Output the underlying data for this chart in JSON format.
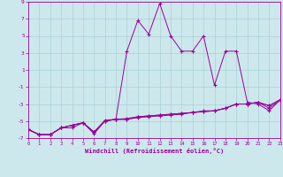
{
  "xlabel": "Windchill (Refroidissement éolien,°C)",
  "background_color": "#cde8ec",
  "line_color": "#990099",
  "grid_color": "#a8d0d4",
  "xmin": 0,
  "xmax": 23,
  "ymin": -7,
  "ymax": 9,
  "yticks": [
    -7,
    -5,
    -3,
    -1,
    1,
    3,
    5,
    7,
    9
  ],
  "xticks": [
    0,
    1,
    2,
    3,
    4,
    5,
    6,
    7,
    8,
    9,
    10,
    11,
    12,
    13,
    14,
    15,
    16,
    17,
    18,
    19,
    20,
    21,
    22,
    23
  ],
  "y_main": [
    -6.0,
    -6.6,
    -6.6,
    -5.8,
    -5.5,
    -5.2,
    -6.3,
    -5.0,
    -4.8,
    3.2,
    6.8,
    5.2,
    8.8,
    5.0,
    3.2,
    3.2,
    5.0,
    -0.8,
    3.2,
    3.2,
    -2.8,
    -3.0,
    -3.8,
    -2.5
  ],
  "y_low1": [
    -6.0,
    -6.6,
    -6.6,
    -5.8,
    -5.5,
    -5.2,
    -6.3,
    -5.0,
    -4.8,
    -4.8,
    -4.5,
    -4.4,
    -4.3,
    -4.2,
    -4.1,
    -4.0,
    -3.9,
    -3.8,
    -3.5,
    -3.0,
    -3.0,
    -2.8,
    -3.5,
    -2.5
  ],
  "y_low2": [
    -6.0,
    -6.6,
    -6.6,
    -5.8,
    -5.5,
    -5.2,
    -6.3,
    -4.9,
    -4.8,
    -4.7,
    -4.5,
    -4.4,
    -4.3,
    -4.2,
    -4.1,
    -4.0,
    -3.9,
    -3.8,
    -3.5,
    -3.0,
    -3.0,
    -2.8,
    -3.2,
    -2.5
  ],
  "y_low3": [
    -6.0,
    -6.6,
    -6.6,
    -5.8,
    -5.8,
    -5.2,
    -6.5,
    -5.0,
    -4.8,
    -4.8,
    -4.6,
    -4.5,
    -4.4,
    -4.3,
    -4.2,
    -4.0,
    -3.8,
    -3.8,
    -3.5,
    -3.0,
    -3.0,
    -2.8,
    -3.2,
    -2.5
  ]
}
